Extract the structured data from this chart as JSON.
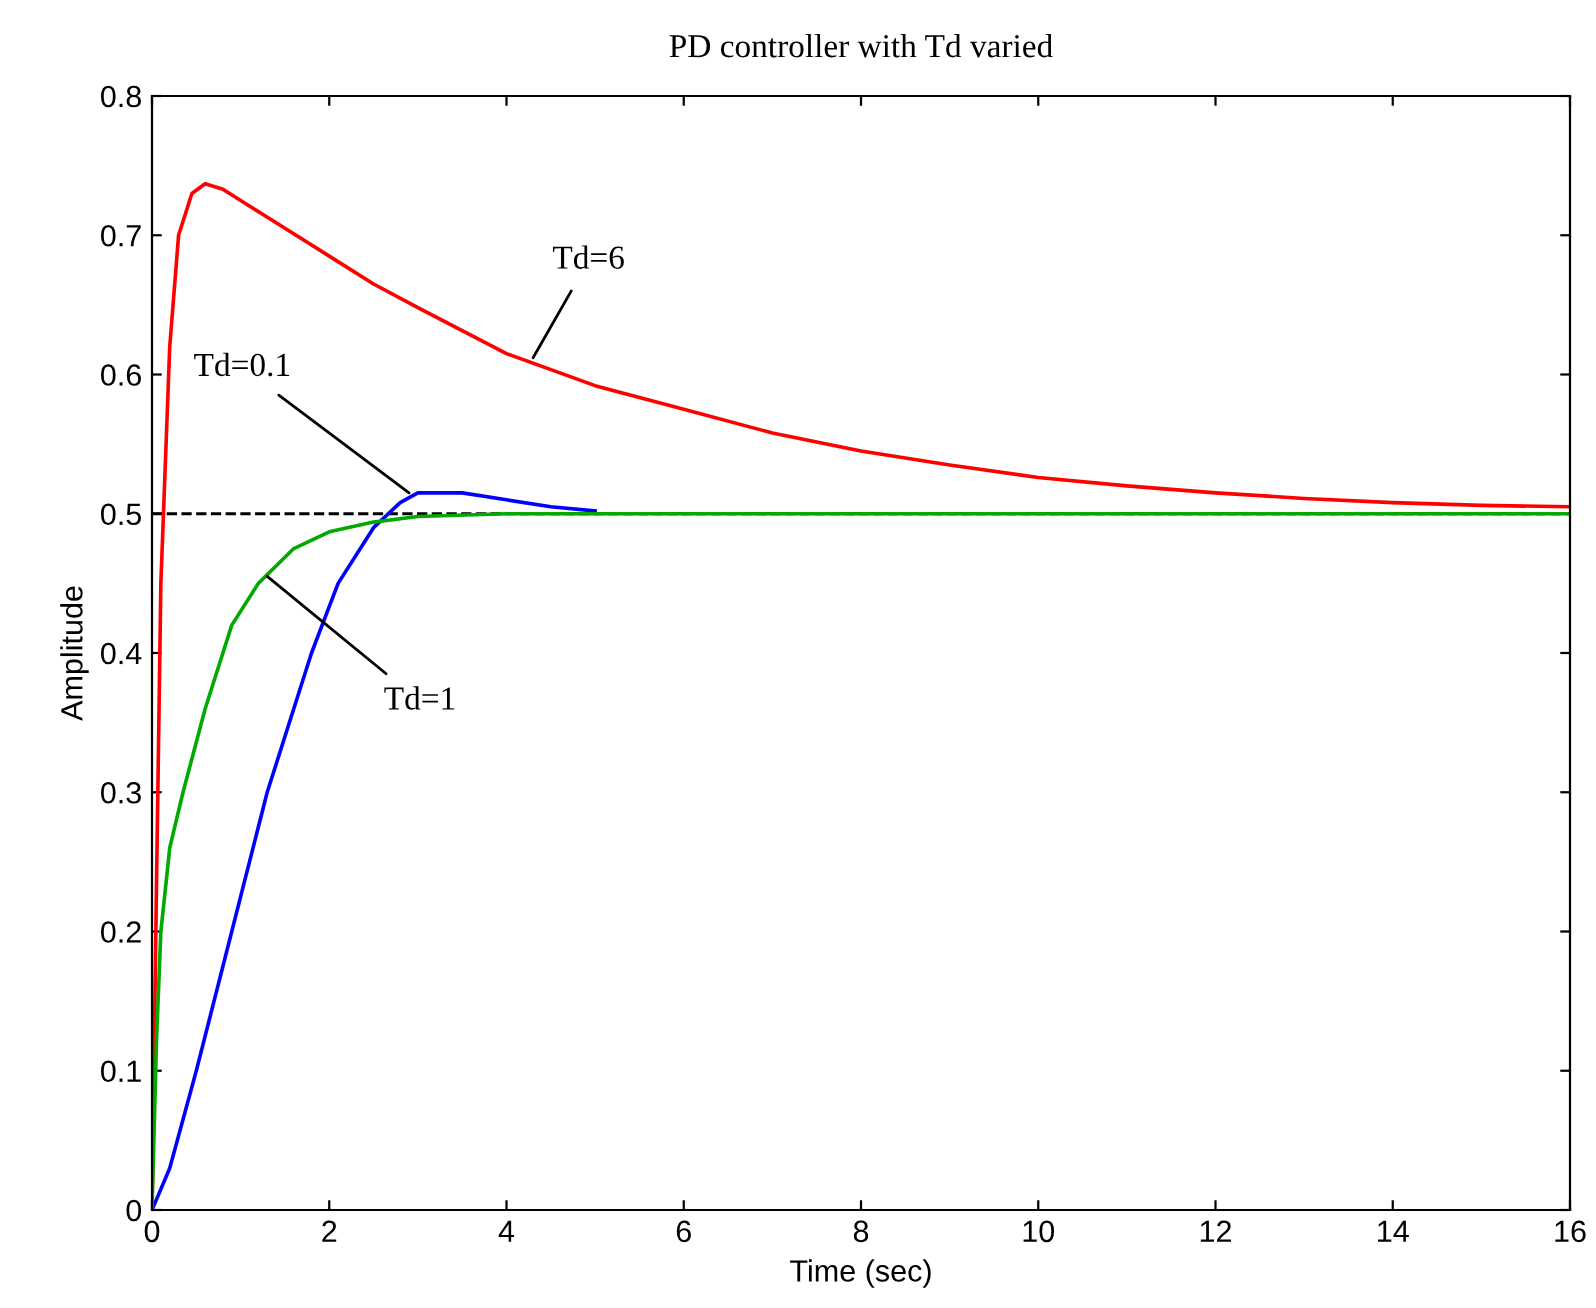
{
  "chart_data": {
    "type": "line",
    "title": "PD controller with Td varied",
    "xlabel": "Time (sec)",
    "ylabel": "Amplitude",
    "xlim": [
      0,
      16
    ],
    "xticks": [
      0,
      2,
      4,
      6,
      8,
      10,
      12,
      14,
      16
    ],
    "ylim": [
      0,
      0.8
    ],
    "yticks": [
      0,
      0.1,
      0.2,
      0.3,
      0.4,
      0.5,
      0.6,
      0.7,
      0.8
    ],
    "grid": false,
    "legend": false,
    "series": [
      {
        "color": "#ff0000",
        "x": [
          0,
          0.05,
          0.1,
          0.2,
          0.3,
          0.45,
          0.6,
          0.8,
          1,
          1.5,
          2,
          2.5,
          3,
          4,
          5,
          6,
          7,
          8,
          9,
          10,
          11,
          12,
          13,
          14,
          15,
          16
        ],
        "values": [
          0,
          0.23,
          0.45,
          0.62,
          0.7,
          0.73,
          0.737,
          0.733,
          0.725,
          0.705,
          0.685,
          0.665,
          0.648,
          0.615,
          0.592,
          0.575,
          0.558,
          0.545,
          0.535,
          0.526,
          0.52,
          0.515,
          0.511,
          0.508,
          0.506,
          0.505
        ]
      },
      {
        "color": "#0000ff",
        "x": [
          0,
          0.2,
          0.5,
          0.9,
          1.3,
          1.8,
          2.1,
          2.5,
          2.8,
          3.0,
          3.5,
          4,
          4.5,
          5
        ],
        "values": [
          0,
          0.03,
          0.1,
          0.2,
          0.3,
          0.4,
          0.45,
          0.49,
          0.508,
          0.515,
          0.515,
          0.51,
          0.505,
          0.502
        ]
      },
      {
        "color": "#00aa00",
        "x": [
          0,
          0.05,
          0.1,
          0.2,
          0.35,
          0.6,
          0.9,
          1.2,
          1.6,
          2,
          2.5,
          3,
          4,
          6,
          8,
          10,
          12,
          14,
          16
        ],
        "values": [
          0,
          0.12,
          0.2,
          0.26,
          0.3,
          0.36,
          0.42,
          0.45,
          0.475,
          0.487,
          0.494,
          0.498,
          0.5,
          0.5,
          0.5,
          0.5,
          0.5,
          0.5,
          0.5
        ]
      }
    ],
    "ref_lines": [
      {
        "axis": "y",
        "value": 0.5,
        "color": "#000000",
        "line_style": "dashed"
      }
    ],
    "annotations": [
      {
        "text": "Td=6",
        "x": 4.3,
        "y": 0.612
      },
      {
        "text": "Td=0.1",
        "x": 2.9,
        "y": 0.515
      },
      {
        "text": "Td=1",
        "x": 1.3,
        "y": 0.455
      }
    ]
  }
}
